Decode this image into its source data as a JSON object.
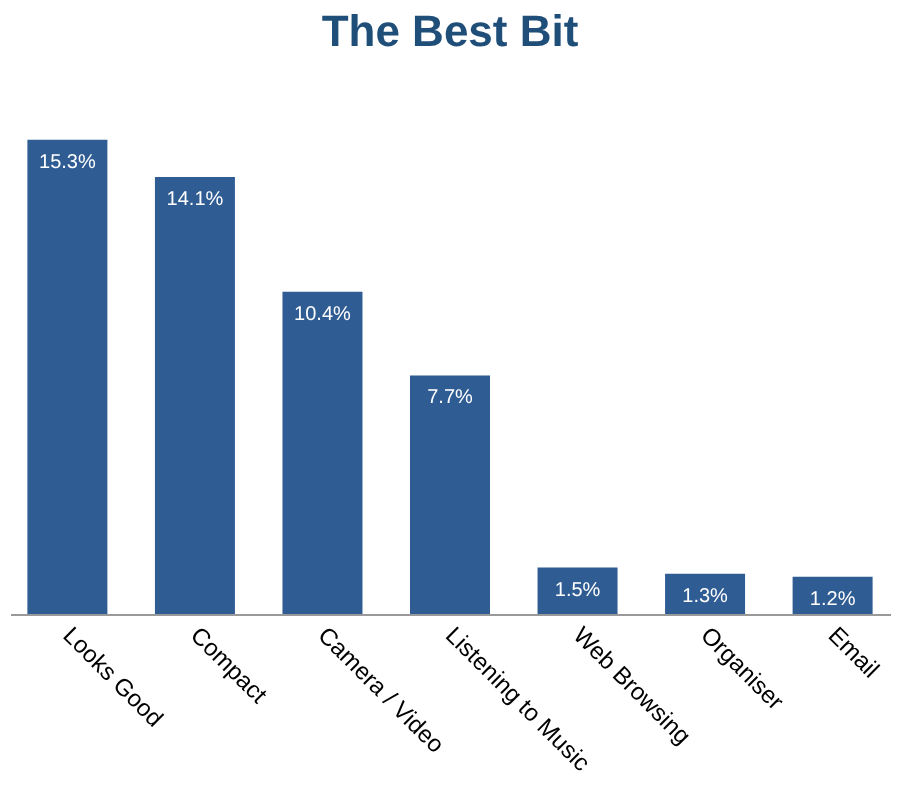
{
  "chart_data": {
    "type": "bar",
    "title": "The Best Bit",
    "categories": [
      "Looks Good",
      "Compact",
      "Camera / Video",
      "Listening to Music",
      "Web Browsing",
      "Organiser",
      "Email"
    ],
    "values": [
      15.3,
      14.1,
      10.4,
      7.7,
      1.5,
      1.3,
      1.2
    ],
    "value_labels": [
      "15.3%",
      "14.1%",
      "10.4%",
      "7.7%",
      "1.5%",
      "1.3%",
      "1.2%"
    ],
    "color": "#2f5c93",
    "grid": false,
    "tick_labels": "x"
  }
}
